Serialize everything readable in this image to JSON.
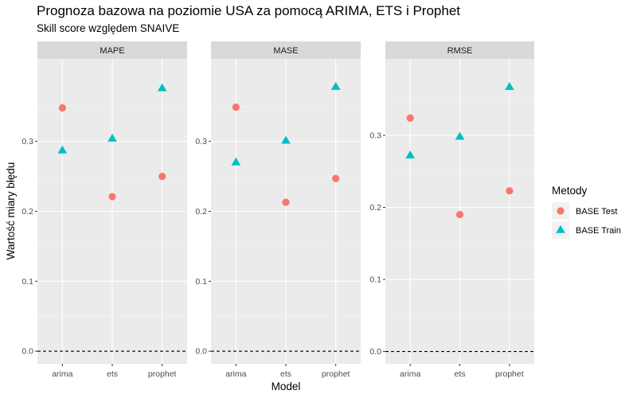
{
  "title": "Prognoza bazowa na poziomie USA za pomocą ARIMA, ETS i Prophet",
  "subtitle": "Skill score względem SNAIVE",
  "chart_data": {
    "type": "scatter",
    "facet_scales": "free_y",
    "categories": [
      "arima",
      "ets",
      "prophet"
    ],
    "xlabel": "Model",
    "ylabel": "Wartość miary błędu",
    "reference_line": {
      "y": 0,
      "style": "dashed"
    },
    "grid": true,
    "legend": {
      "title": "Metody",
      "position": "right",
      "entries": [
        {
          "name": "BASE Test",
          "shape": "circle",
          "color": "#F8766D"
        },
        {
          "name": "BASE Train",
          "shape": "triangle",
          "color": "#00BFC4"
        }
      ]
    },
    "facets": [
      {
        "name": "MAPE",
        "ylim": [
          -0.018,
          0.418
        ],
        "yticks": [
          0.0,
          0.1,
          0.2,
          0.3
        ],
        "ytick_labels": [
          "0.0",
          "0.1",
          "0.2",
          "0.3"
        ],
        "series": [
          {
            "name": "BASE Test",
            "values": [
              0.348,
              0.221,
              0.25
            ]
          },
          {
            "name": "BASE Train",
            "values": [
              0.287,
              0.304,
              0.376
            ]
          }
        ]
      },
      {
        "name": "MASE",
        "ylim": [
          -0.018,
          0.418
        ],
        "yticks": [
          0.0,
          0.1,
          0.2,
          0.3
        ],
        "ytick_labels": [
          "0.0",
          "0.1",
          "0.2",
          "0.3"
        ],
        "series": [
          {
            "name": "BASE Test",
            "values": [
              0.349,
              0.213,
              0.247
            ]
          },
          {
            "name": "BASE Train",
            "values": [
              0.27,
              0.301,
              0.378
            ]
          }
        ]
      },
      {
        "name": "RMSE",
        "ylim": [
          -0.017,
          0.406
        ],
        "yticks": [
          0.0,
          0.1,
          0.2,
          0.3
        ],
        "ytick_labels": [
          "0.0",
          "0.1",
          "0.2",
          "0.3"
        ],
        "series": [
          {
            "name": "BASE Test",
            "values": [
              0.324,
              0.19,
              0.223
            ]
          },
          {
            "name": "BASE Train",
            "values": [
              0.272,
              0.298,
              0.367
            ]
          }
        ]
      }
    ]
  }
}
